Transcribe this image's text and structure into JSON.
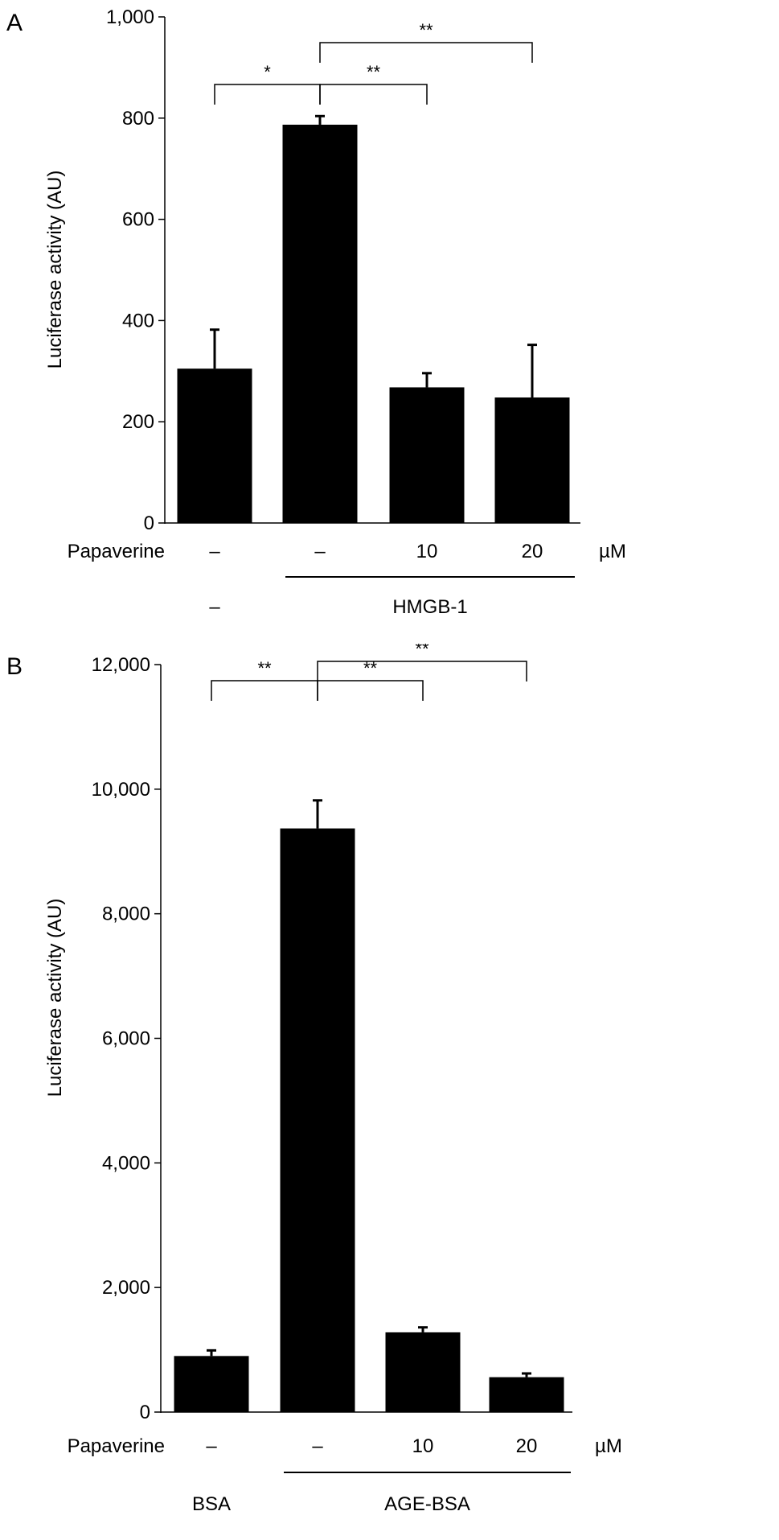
{
  "chart_data": [
    {
      "panel_label": "A",
      "type": "bar",
      "ylabel": "Luciferase activity (AU)",
      "ylim": [
        0,
        1000
      ],
      "yticks": [
        0,
        200,
        400,
        600,
        800,
        1000
      ],
      "ytick_labels": [
        "0",
        "200",
        "400",
        "600",
        "800",
        "1,000"
      ],
      "categories": [
        "1",
        "2",
        "3",
        "4"
      ],
      "values": [
        305,
        787,
        268,
        248
      ],
      "errors": [
        77,
        17,
        28,
        104
      ],
      "bar_color": "#000000",
      "row_label": "Papaverine",
      "row_values": [
        "–",
        "–",
        "10",
        "20"
      ],
      "row_unit": "µM",
      "group_labels": [
        {
          "text": "–",
          "from": 0,
          "to": 0,
          "underline": false
        },
        {
          "text": "HMGB-1",
          "from": 1,
          "to": 3,
          "underline": true
        }
      ],
      "brackets": [
        {
          "from": 0,
          "to": 1,
          "label": "*",
          "level": 1
        },
        {
          "from": 1,
          "to": 2,
          "label": "**",
          "level": 1
        },
        {
          "from": 1,
          "to": 3,
          "label": "**",
          "level": 2
        }
      ]
    },
    {
      "panel_label": "B",
      "type": "bar",
      "ylabel": "Luciferase activity (AU)",
      "ylim": [
        0,
        12000
      ],
      "yticks": [
        0,
        2000,
        4000,
        6000,
        8000,
        10000,
        12000
      ],
      "ytick_labels": [
        "0",
        "2,000",
        "4,000",
        "6,000",
        "8,000",
        "10,000",
        "12,000"
      ],
      "categories": [
        "1",
        "2",
        "3",
        "4"
      ],
      "values": [
        900,
        9370,
        1280,
        560
      ],
      "errors": [
        90,
        450,
        80,
        60
      ],
      "bar_color": "#000000",
      "row_label": "Papaverine",
      "row_values": [
        "–",
        "–",
        "10",
        "20"
      ],
      "row_unit": "µM",
      "group_labels": [
        {
          "text": "BSA",
          "from": 0,
          "to": 0,
          "underline": false
        },
        {
          "text": "AGE-BSA",
          "from": 1,
          "to": 3,
          "underline": true
        }
      ],
      "brackets": [
        {
          "from": 0,
          "to": 1,
          "label": "**",
          "level": 1
        },
        {
          "from": 1,
          "to": 2,
          "label": "**",
          "level": 1
        },
        {
          "from": 1,
          "to": 3,
          "label": "**",
          "level": 2
        }
      ]
    }
  ]
}
